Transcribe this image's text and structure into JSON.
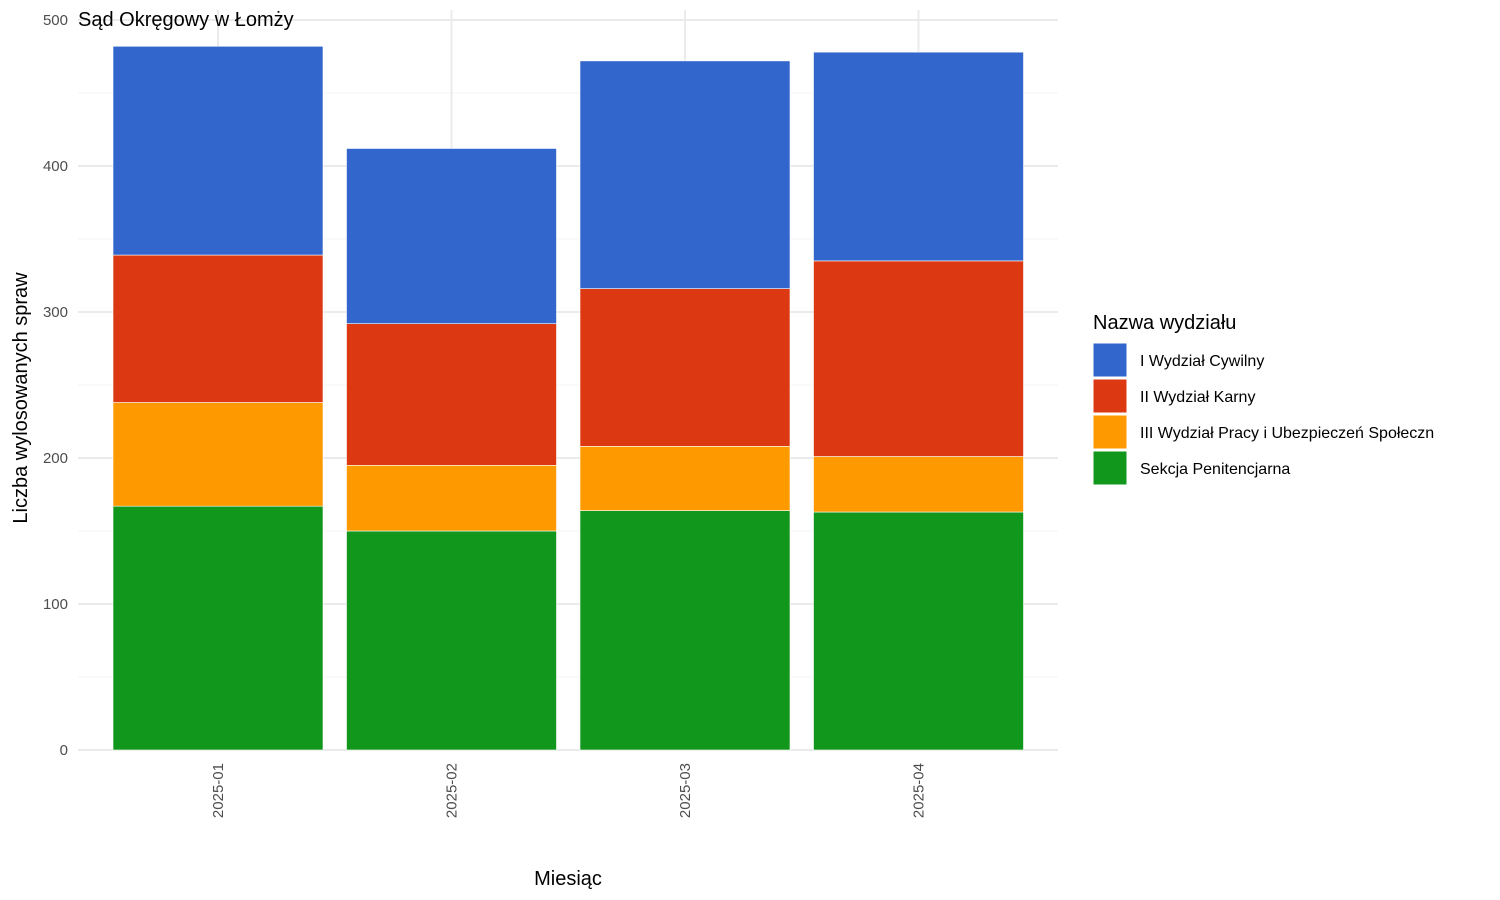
{
  "chart_data": {
    "type": "bar",
    "stacked": true,
    "title": "Sąd Okręgowy w Łomży",
    "xlabel": "Miesiąc",
    "ylabel": "Liczba wylosowanych spraw",
    "ylim": [
      0,
      500
    ],
    "yticks": [
      0,
      100,
      200,
      300,
      400,
      500
    ],
    "grid": true,
    "legend_position": "right",
    "legend_title": "Nazwa wydziału",
    "categories": [
      "2025-01",
      "2025-02",
      "2025-03",
      "2025-04"
    ],
    "series": [
      {
        "name": "Sekcja Penitencjarna",
        "color": "#11971b",
        "values": [
          167,
          150,
          164,
          163
        ]
      },
      {
        "name": "III Wydział Pracy i Ubezpieczeń Społeczn",
        "color": "#ff9900",
        "values": [
          71,
          45,
          44,
          38
        ]
      },
      {
        "name": "II Wydział Karny",
        "color": "#dc3912",
        "values": [
          101,
          97,
          108,
          134
        ]
      },
      {
        "name": "I Wydział Cywilny",
        "color": "#3366cc",
        "values": [
          143,
          120,
          156,
          143
        ]
      }
    ],
    "legend_order": [
      "I Wydział Cywilny",
      "II Wydział Karny",
      "III Wydział Pracy i Ubezpieczeń Społeczn",
      "Sekcja Penitencjarna"
    ]
  }
}
